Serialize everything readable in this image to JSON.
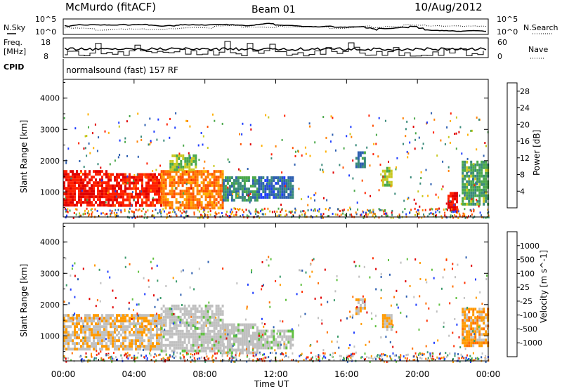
{
  "header": {
    "station": "McMurdo (fitACF)",
    "beam": "Beam 01",
    "date": "10/Aug/2012"
  },
  "noise_panel": {
    "left_label": "N.Sky",
    "right_label": "N.Search",
    "left_ticks": [
      "10^5",
      "10^0"
    ],
    "right_ticks": [
      "10^5",
      "10^0"
    ]
  },
  "freq_panel": {
    "left_label_1": "Freq.",
    "left_label_2": "[MHz]",
    "right_label": "Nave",
    "left_ticks": [
      "18",
      "8"
    ],
    "right_ticks": [
      "60",
      "0"
    ]
  },
  "cpid": {
    "label": "CPID",
    "value": "normalsound (fast) 157 RF"
  },
  "chart_data": [
    {
      "type": "heatmap",
      "title": "Power",
      "ylabel": "Slant Range [km]",
      "xlabel": "Time UT",
      "x_ticks": [
        "00:00",
        "04:00",
        "08:00",
        "12:00",
        "16:00",
        "20:00",
        "00:00"
      ],
      "y_ticks": [
        "1000",
        "2000",
        "3000",
        "4000"
      ],
      "ylim": [
        200,
        4600
      ],
      "xlim_hours": [
        0,
        24
      ],
      "colorbar": {
        "label": "Power [dB]",
        "ticks": [
          "4",
          "8",
          "12",
          "16",
          "20",
          "24",
          "28"
        ],
        "range": [
          0,
          30
        ],
        "colors": [
          "#1f3dff",
          "#2d5fb0",
          "#3a8a7a",
          "#4aa84a",
          "#c8c820",
          "#ffb000",
          "#ff8000",
          "#ff5000",
          "#ff2000",
          "#e00000"
        ]
      },
      "regions": [
        {
          "t": [
            0,
            2.5
          ],
          "r": [
            600,
            1700
          ],
          "level": 27
        },
        {
          "t": [
            2.5,
            5.5
          ],
          "r": [
            600,
            1600
          ],
          "level": 26
        },
        {
          "t": [
            5.5,
            9
          ],
          "r": [
            500,
            1700
          ],
          "level": 20
        },
        {
          "t": [
            6,
            7.5
          ],
          "r": [
            1700,
            2200
          ],
          "level": 12
        },
        {
          "t": [
            9,
            11
          ],
          "r": [
            700,
            1500
          ],
          "level": 8
        },
        {
          "t": [
            11,
            13
          ],
          "r": [
            800,
            1500
          ],
          "level": 5
        },
        {
          "t": [
            16.5,
            17
          ],
          "r": [
            1800,
            2300
          ],
          "level": 7
        },
        {
          "t": [
            18,
            18.5
          ],
          "r": [
            1200,
            1800
          ],
          "level": 12
        },
        {
          "t": [
            21.7,
            22.2
          ],
          "r": [
            400,
            1000
          ],
          "level": 27
        },
        {
          "t": [
            22.5,
            24
          ],
          "r": [
            600,
            2000
          ],
          "level": 10
        }
      ]
    },
    {
      "type": "heatmap",
      "title": "Velocity",
      "ylabel": "Slant Range [km]",
      "xlabel": "Time UT",
      "x_ticks": [
        "00:00",
        "04:00",
        "08:00",
        "12:00",
        "16:00",
        "20:00",
        "00:00"
      ],
      "y_ticks": [
        "1000",
        "2000",
        "3000",
        "4000"
      ],
      "ylim": [
        200,
        4600
      ],
      "xlim_hours": [
        0,
        24
      ],
      "colorbar": {
        "label": "Velocity [m s^-1]",
        "ticks": [
          "1000",
          "500",
          "100",
          "25",
          "-25",
          "-100",
          "-500",
          "-1000"
        ],
        "range": [
          -1000,
          1000
        ],
        "colors": [
          "#e00000",
          "#ff3000",
          "#ff7000",
          "#ff9a00",
          "#c0c0c0",
          "#c0c0c0",
          "#60c040",
          "#3a9a6a",
          "#2d5fb0",
          "#1f3dff"
        ]
      },
      "regions": [
        {
          "t": [
            0,
            5.5
          ],
          "r": [
            600,
            1700
          ],
          "level": -150
        },
        {
          "t": [
            5.5,
            9
          ],
          "r": [
            500,
            2000
          ],
          "level": 60
        },
        {
          "t": [
            9,
            11
          ],
          "r": [
            500,
            1400
          ],
          "level": 40
        },
        {
          "t": [
            11,
            13
          ],
          "r": [
            600,
            1200
          ],
          "level": 80
        },
        {
          "t": [
            16.5,
            17
          ],
          "r": [
            1700,
            2200
          ],
          "level": -200
        },
        {
          "t": [
            18,
            18.5
          ],
          "r": [
            1200,
            1700
          ],
          "level": -200
        },
        {
          "t": [
            22.5,
            24
          ],
          "r": [
            700,
            1900
          ],
          "level": -300
        }
      ]
    }
  ]
}
